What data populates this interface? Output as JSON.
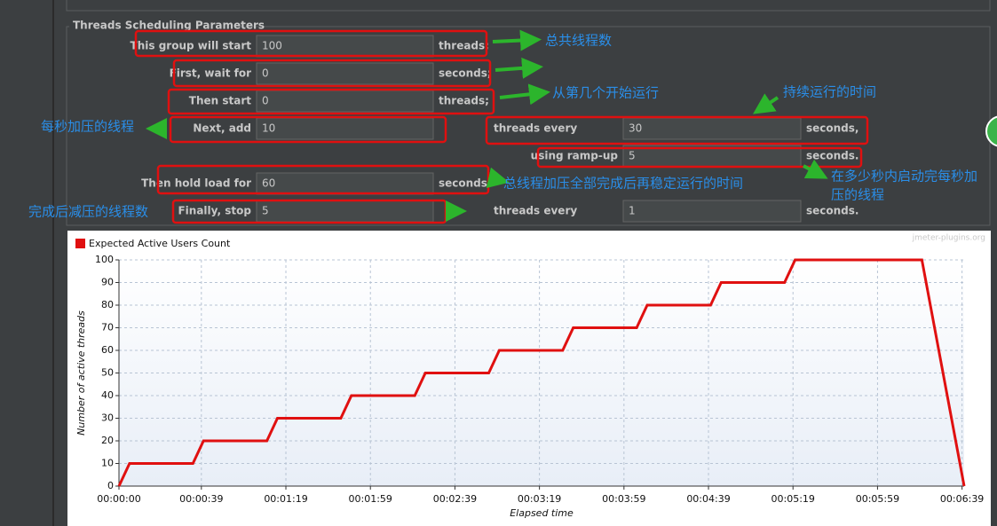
{
  "panel": {
    "title": "Threads Scheduling Parameters",
    "rows": [
      [
        {
          "label": "This group will start",
          "value": 100,
          "unit": "threads;"
        }
      ],
      [
        {
          "label": "First, wait for",
          "value": 0,
          "unit": "seconds;"
        }
      ],
      [
        {
          "label": "Then start",
          "value": 0,
          "unit": "threads;"
        }
      ],
      [
        {
          "label": "Next, add",
          "value": 10
        },
        {
          "label": "threads every",
          "value": 30,
          "unit": "seconds,"
        }
      ],
      [
        {
          "label": "using ramp-up",
          "value": 5,
          "unit": "seconds."
        }
      ],
      [
        {
          "label": "Then hold load for",
          "value": 60,
          "unit": "seconds."
        }
      ],
      [
        {
          "label": "Finally, stop",
          "value": 5
        },
        {
          "label": "threads every",
          "value": 1,
          "unit": "seconds."
        }
      ]
    ]
  },
  "annotations": [
    "总共线程数",
    "从第几个开始运行",
    "持续运行的时间",
    "每秒加压的线程",
    [
      "在多少秒内启动完每秒加",
      "压的线程"
    ],
    "总线程加压全部完成后再稳定运行的时间",
    "完成后减压的线程数"
  ],
  "chart_data": {
    "type": "line",
    "watermark": "jmeter-plugins.org",
    "x_label": "Elapsed time",
    "y_label": "Number of active threads",
    "x": [
      0,
      5,
      35,
      40,
      70,
      75,
      105,
      110,
      140,
      145,
      175,
      180,
      210,
      215,
      245,
      250,
      280,
      285,
      315,
      320,
      380,
      400
    ],
    "series": [
      {
        "name": "Expected Active Users Count",
        "color": "#e01010",
        "values": [
          0,
          10,
          10,
          20,
          20,
          30,
          30,
          40,
          40,
          50,
          50,
          60,
          60,
          70,
          70,
          80,
          80,
          90,
          90,
          100,
          100,
          0
        ]
      }
    ],
    "xlim": [
      0,
      400
    ],
    "ylim": [
      0,
      100
    ],
    "xticks": [
      {
        "value": 0,
        "label": "00:00:00"
      },
      {
        "value": 39,
        "label": "00:00:39"
      },
      {
        "value": 79,
        "label": "00:01:19"
      },
      {
        "value": 119,
        "label": "00:01:59"
      },
      {
        "value": 159,
        "label": "00:02:39"
      },
      {
        "value": 199,
        "label": "00:03:19"
      },
      {
        "value": 239,
        "label": "00:03:59"
      },
      {
        "value": 279,
        "label": "00:04:39"
      },
      {
        "value": 319,
        "label": "00:05:19"
      },
      {
        "value": 359,
        "label": "00:05:59"
      },
      {
        "value": 399,
        "label": "00:06:39"
      }
    ],
    "yticks": [
      0,
      10,
      20,
      30,
      40,
      50,
      60,
      70,
      80,
      90,
      100
    ],
    "grid": true
  }
}
